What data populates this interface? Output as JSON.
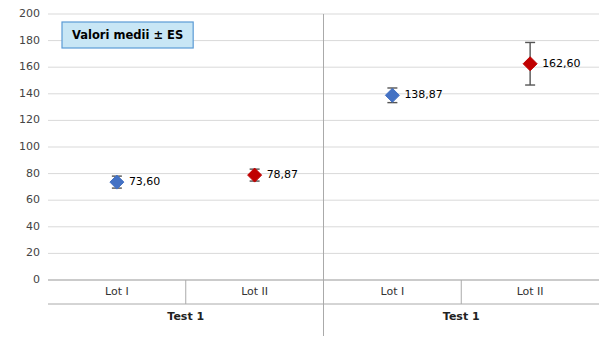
{
  "chart_data": {
    "type": "errorbar",
    "categories": [
      "Lot I",
      "Lot II",
      "Lot I",
      "Lot II"
    ],
    "values": [
      73.6,
      78.87,
      138.87,
      162.6
    ],
    "errors": [
      4.5,
      4.5,
      5.5,
      16.0
    ],
    "value_labels": [
      "73,60",
      "78,87",
      "138,87",
      "162,60"
    ],
    "data_labels": true,
    "colors": [
      "#4472C4",
      "#C00000",
      "#4472C4",
      "#C00000"
    ],
    "marker": "diamond",
    "group_labels": [
      "Test 1",
      "Test 1"
    ],
    "annotation": "Valori medii ± ES",
    "ylim": [
      0,
      200
    ],
    "yticks": [
      0,
      20,
      40,
      60,
      80,
      100,
      120,
      140,
      160,
      180,
      200
    ],
    "grid": true
  }
}
